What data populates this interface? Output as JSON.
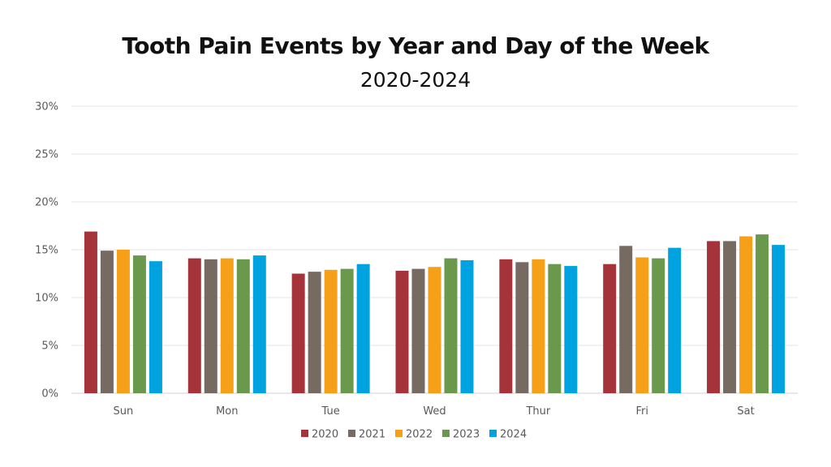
{
  "chart_data": {
    "type": "bar",
    "title": "Tooth Pain Events by Year and Day of the Week",
    "subtitle": "2020-2024",
    "xlabel": "",
    "ylabel": "",
    "categories": [
      "Sun",
      "Mon",
      "Tue",
      "Wed",
      "Thur",
      "Fri",
      "Sat"
    ],
    "ylim": [
      0,
      30
    ],
    "yticks": [
      0,
      5,
      10,
      15,
      20,
      25,
      30
    ],
    "ytick_labels": [
      "0%",
      "5%",
      "10%",
      "15%",
      "20%",
      "25%",
      "30%"
    ],
    "grid": true,
    "legend_position": "bottom",
    "series": [
      {
        "name": "2020",
        "color": "#A4343A",
        "values": [
          16.9,
          14.1,
          12.5,
          12.8,
          14.0,
          13.5,
          15.9
        ]
      },
      {
        "name": "2021",
        "color": "#766A62",
        "values": [
          14.9,
          14.0,
          12.7,
          13.0,
          13.7,
          15.4,
          15.9
        ]
      },
      {
        "name": "2022",
        "color": "#F6A01A",
        "values": [
          15.0,
          14.1,
          12.9,
          13.2,
          14.0,
          14.2,
          16.4
        ]
      },
      {
        "name": "2023",
        "color": "#6A994E",
        "values": [
          14.4,
          14.0,
          13.0,
          14.1,
          13.5,
          14.1,
          16.6
        ]
      },
      {
        "name": "2024",
        "color": "#00A3E0",
        "values": [
          13.8,
          14.4,
          13.5,
          13.9,
          13.3,
          15.2,
          15.5
        ]
      }
    ]
  }
}
